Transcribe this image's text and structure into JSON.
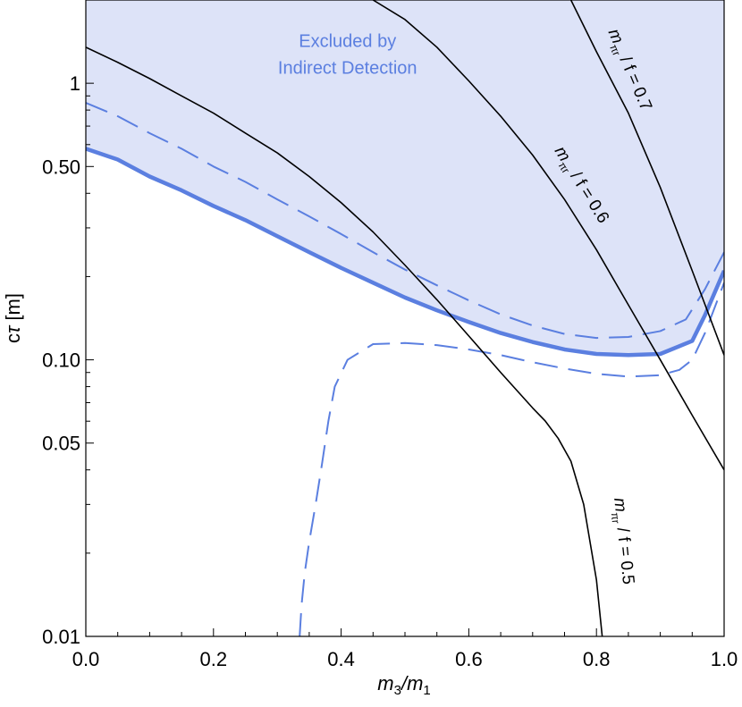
{
  "chart_data": {
    "type": "line",
    "xlabel": "m3/m1",
    "ylabel": "cτ [m]",
    "xlim": [
      0,
      1
    ],
    "ylim": [
      0.01,
      2
    ],
    "yscale": "log",
    "x_ticks": [
      0,
      0.2,
      0.4,
      0.6,
      0.8,
      1.0
    ],
    "x_tick_labels": [
      "0.0",
      "0.2",
      "0.4",
      "0.6",
      "0.8",
      "1.0"
    ],
    "y_ticks": [
      0.01,
      0.05,
      0.1,
      0.5,
      1
    ],
    "y_tick_labels": [
      "0.01",
      "0.05",
      "0.10",
      "0.50",
      "1"
    ],
    "grid": false,
    "colors": {
      "region_fill": "#dde3f8",
      "blue": "#5b7fe0",
      "black": "#000000"
    },
    "annotation": {
      "line1": "Excluded by",
      "line2": "Indirect Detection",
      "x": 0.41,
      "y": 1.22
    },
    "series": [
      {
        "key": "bound",
        "style": "thick-solid-blue",
        "x": [
          0,
          0.05,
          0.1,
          0.15,
          0.2,
          0.25,
          0.3,
          0.35,
          0.4,
          0.45,
          0.5,
          0.55,
          0.6,
          0.65,
          0.7,
          0.75,
          0.8,
          0.85,
          0.9,
          0.95,
          0.97,
          1.0
        ],
        "y": [
          0.58,
          0.53,
          0.46,
          0.41,
          0.36,
          0.32,
          0.28,
          0.245,
          0.215,
          0.19,
          0.168,
          0.151,
          0.137,
          0.125,
          0.116,
          0.109,
          0.105,
          0.104,
          0.105,
          0.117,
          0.145,
          0.21
        ]
      },
      {
        "key": "dashed_upper",
        "style": "dashed-blue",
        "x": [
          0,
          0.05,
          0.1,
          0.15,
          0.2,
          0.25,
          0.3,
          0.35,
          0.4,
          0.45,
          0.5,
          0.55,
          0.6,
          0.65,
          0.7,
          0.75,
          0.8,
          0.85,
          0.9,
          0.94,
          0.97,
          1.0
        ],
        "y": [
          0.85,
          0.76,
          0.66,
          0.58,
          0.5,
          0.44,
          0.38,
          0.33,
          0.285,
          0.245,
          0.212,
          0.186,
          0.164,
          0.146,
          0.133,
          0.124,
          0.12,
          0.121,
          0.127,
          0.14,
          0.18,
          0.245
        ]
      },
      {
        "key": "dashed_lower",
        "style": "dashed-blue",
        "x": [
          0.335,
          0.338,
          0.343,
          0.35,
          0.36,
          0.37,
          0.38,
          0.39,
          0.41,
          0.45,
          0.5,
          0.55,
          0.6,
          0.65,
          0.7,
          0.75,
          0.8,
          0.85,
          0.9,
          0.93,
          0.95,
          0.97,
          1.0
        ],
        "y": [
          0.01,
          0.013,
          0.017,
          0.022,
          0.03,
          0.042,
          0.06,
          0.08,
          0.1,
          0.114,
          0.115,
          0.113,
          0.109,
          0.104,
          0.098,
          0.093,
          0.089,
          0.087,
          0.088,
          0.092,
          0.1,
          0.125,
          0.19
        ]
      },
      {
        "key": "f05",
        "style": "thin-black",
        "label": "m_πr / f = 0.5",
        "x": [
          0,
          0.05,
          0.1,
          0.15,
          0.2,
          0.25,
          0.3,
          0.35,
          0.4,
          0.45,
          0.5,
          0.55,
          0.6,
          0.65,
          0.7,
          0.72,
          0.74,
          0.76,
          0.78,
          0.8,
          0.81
        ],
        "y": [
          1.35,
          1.19,
          1.04,
          0.9,
          0.78,
          0.66,
          0.56,
          0.46,
          0.37,
          0.29,
          0.22,
          0.165,
          0.122,
          0.09,
          0.067,
          0.06,
          0.052,
          0.043,
          0.03,
          0.016,
          0.0095
        ]
      },
      {
        "key": "f06",
        "style": "thin-black",
        "label": "m_πr / f = 0.6",
        "x": [
          0.45,
          0.5,
          0.55,
          0.6,
          0.65,
          0.7,
          0.75,
          0.8,
          0.85,
          0.9,
          0.95,
          1.0
        ],
        "y": [
          2.0,
          1.7,
          1.35,
          1.02,
          0.76,
          0.55,
          0.38,
          0.25,
          0.158,
          0.1,
          0.063,
          0.04
        ]
      },
      {
        "key": "f07",
        "style": "thin-black",
        "label": "m_πr / f = 0.7",
        "x": [
          0.76,
          0.8,
          0.85,
          0.9,
          0.95,
          1.0
        ],
        "y": [
          2.0,
          1.3,
          0.78,
          0.42,
          0.21,
          0.104
        ]
      }
    ],
    "curve_labels": [
      {
        "series": "f07",
        "m": "m",
        "sub": "πr",
        "rest": " / f = 0.7",
        "x": 0.845,
        "y": 1.1,
        "rotate": 67
      },
      {
        "series": "f06",
        "m": "m",
        "sub": "πr",
        "rest": " / f = 0.6",
        "x": 0.77,
        "y": 0.42,
        "rotate": 58
      },
      {
        "series": "f05",
        "m": "m",
        "sub": "πr",
        "rest": " / f = 0.5",
        "x": 0.835,
        "y": 0.022,
        "rotate": 84
      }
    ],
    "axis_titles": {
      "x": {
        "m1": "m",
        "s1": "3",
        "slash": "/",
        "m2": "m",
        "s2": "1"
      },
      "y": {
        "c": "c",
        "tau": "τ",
        "unit": " [m]"
      }
    }
  }
}
